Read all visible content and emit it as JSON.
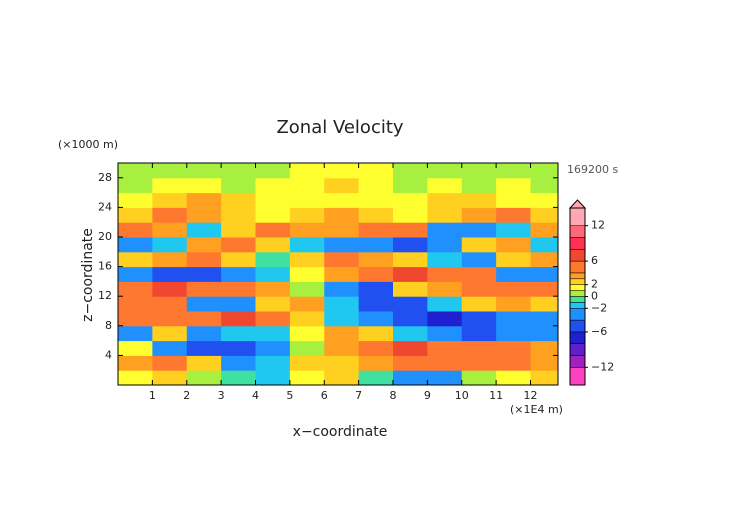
{
  "chart_data": {
    "type": "heatmap",
    "title": "Zonal Velocity",
    "xlabel": "x−coordinate",
    "ylabel": "z−coordinate",
    "x_unit": "(×1E4 m)",
    "y_unit": "(×1000 m)",
    "time_label": "169200 s",
    "x": [
      0,
      1,
      2,
      3,
      4,
      5,
      6,
      7,
      8,
      9,
      10,
      11,
      12,
      12.8
    ],
    "y": [
      0,
      2,
      4,
      6,
      8,
      10,
      12,
      14,
      16,
      18,
      20,
      22,
      24,
      26,
      28,
      30
    ],
    "z": [
      [
        1,
        2,
        0,
        -1,
        -2,
        1,
        2,
        -1,
        -3,
        -4,
        0,
        1,
        2
      ],
      [
        3,
        4,
        2,
        -3,
        -2,
        2,
        2,
        3,
        4,
        5,
        5,
        4,
        3
      ],
      [
        1,
        -4,
        -5,
        -6,
        -3,
        0,
        3,
        5,
        6,
        5,
        4,
        5,
        3
      ],
      [
        -4,
        2,
        -3,
        -2,
        -2,
        1,
        3,
        2,
        -2,
        -4,
        -5,
        -4,
        -3
      ],
      [
        4,
        5,
        5,
        6,
        5,
        2,
        -2,
        -3,
        -6,
        -7,
        -5,
        -4,
        -3
      ],
      [
        5,
        4,
        -3,
        -4,
        2,
        3,
        -2,
        -5,
        -6,
        -2,
        2,
        3,
        2
      ],
      [
        5,
        6,
        5,
        4,
        3,
        0,
        -3,
        -5,
        2,
        3,
        4,
        5,
        4
      ],
      [
        -4,
        -6,
        -5,
        -4,
        -2,
        1,
        3,
        5,
        6,
        5,
        4,
        -3,
        -4
      ],
      [
        2,
        3,
        4,
        2,
        -1,
        2,
        4,
        3,
        2,
        -2,
        -3,
        2,
        3
      ],
      [
        -3,
        -2,
        3,
        4,
        2,
        -2,
        -3,
        -4,
        -5,
        -3,
        2,
        3,
        -2
      ],
      [
        4,
        3,
        -2,
        2,
        4,
        3,
        3,
        4,
        5,
        -3,
        -4,
        -2,
        3
      ],
      [
        2,
        4,
        3,
        2,
        1,
        2,
        3,
        2,
        1,
        2,
        3,
        4,
        2
      ],
      [
        1,
        2,
        3,
        2,
        1,
        1,
        1,
        1,
        1,
        2,
        2,
        1,
        1
      ],
      [
        0,
        1,
        1,
        0,
        1,
        1,
        2,
        1,
        0,
        1,
        0,
        1,
        0
      ],
      [
        0,
        0,
        0,
        0,
        0,
        1,
        1,
        1,
        0,
        0,
        0,
        0,
        0
      ]
    ],
    "xlim": [
      0,
      12.8
    ],
    "xticks": [
      1,
      2,
      3,
      4,
      5,
      6,
      7,
      8,
      9,
      10,
      11,
      12
    ],
    "ylim": [
      0,
      30
    ],
    "yticks": [
      4,
      8,
      12,
      16,
      20,
      24,
      28
    ],
    "colorbar": {
      "levels": [
        -15,
        -12,
        -10,
        -8,
        -6,
        -4,
        -2,
        -1,
        0,
        1,
        2,
        3,
        4,
        6,
        8,
        10,
        12,
        15
      ],
      "colors": [
        "#ff40c0",
        "#a020c0",
        "#6020c8",
        "#2020d0",
        "#2050f0",
        "#2090ff",
        "#20c8f0",
        "#40e0a0",
        "#a8f040",
        "#ffff30",
        "#ffd020",
        "#ffa020",
        "#ff7830",
        "#f04830",
        "#ff3050",
        "#ff6878",
        "#ffa8b4"
      ],
      "lim": [
        -15,
        15
      ],
      "ticks": [
        12,
        6,
        2,
        0,
        {
          "value": -2,
          "label": "−2"
        },
        {
          "value": -6,
          "label": "−6"
        },
        {
          "value": -12,
          "label": "−12"
        }
      ]
    }
  }
}
